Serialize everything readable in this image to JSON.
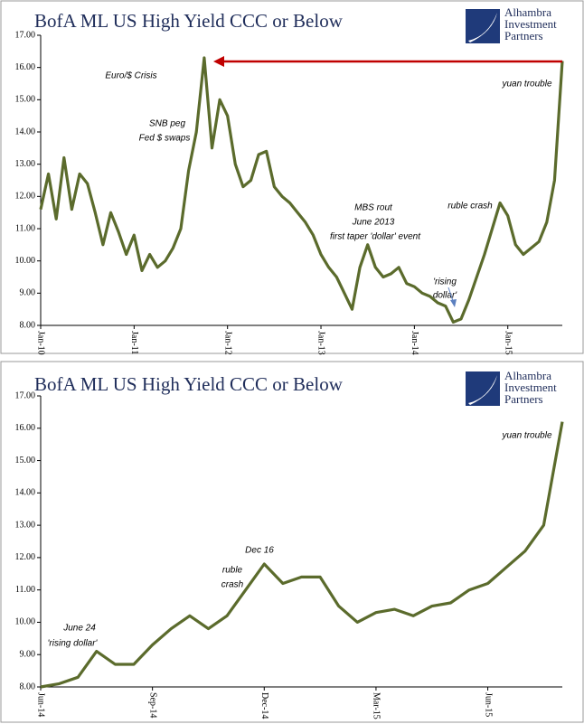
{
  "chart_data": [
    {
      "type": "line",
      "title": "BofA ML US High Yield CCC or Below",
      "logo": [
        "Alhambra",
        "Investment",
        "Partners"
      ],
      "categories": [
        "Jan-10",
        null,
        null,
        null,
        null,
        null,
        null,
        null,
        null,
        null,
        null,
        null,
        "Jan-11",
        null,
        null,
        null,
        null,
        null,
        null,
        null,
        null,
        null,
        null,
        null,
        "Jan-12",
        null,
        null,
        null,
        null,
        null,
        null,
        null,
        null,
        null,
        null,
        null,
        "Jan-13",
        null,
        null,
        null,
        null,
        null,
        null,
        null,
        null,
        null,
        null,
        null,
        "Jan-14",
        null,
        null,
        null,
        null,
        null,
        null,
        null,
        null,
        null,
        null,
        null,
        "Jan-15",
        null,
        null,
        null,
        null,
        null,
        null,
        null
      ],
      "values": [
        11.6,
        12.7,
        11.3,
        13.2,
        11.6,
        12.7,
        12.4,
        11.5,
        10.5,
        11.5,
        10.9,
        10.2,
        10.8,
        9.7,
        10.2,
        9.8,
        10.0,
        10.4,
        11.0,
        12.8,
        14.0,
        16.3,
        13.5,
        15.0,
        14.5,
        13.0,
        12.3,
        12.5,
        13.3,
        13.4,
        12.3,
        12.0,
        11.8,
        11.5,
        11.2,
        10.8,
        10.2,
        9.8,
        9.5,
        9.0,
        8.5,
        9.8,
        10.5,
        9.8,
        9.5,
        9.6,
        9.8,
        9.3,
        9.2,
        9.0,
        8.9,
        8.7,
        8.6,
        8.1,
        8.2,
        8.8,
        9.5,
        10.2,
        11.0,
        11.8,
        11.4,
        10.5,
        10.2,
        10.4,
        10.6,
        11.2,
        12.5,
        16.2
      ],
      "color": "#5b6b2c",
      "ylim": [
        8,
        17
      ],
      "yticks": [
        {
          "value": 8,
          "label": "8.00"
        },
        {
          "value": 9,
          "label": "9.00"
        },
        {
          "value": 10,
          "label": "10.00"
        },
        {
          "value": 11,
          "label": "11.00"
        },
        {
          "value": 12,
          "label": "12.00"
        },
        {
          "value": 13,
          "label": "13.00"
        },
        {
          "value": 14,
          "label": "14.00"
        },
        {
          "value": 15,
          "label": "15.00"
        },
        {
          "value": 16,
          "label": "16.00"
        },
        {
          "value": 17,
          "label": "17.00"
        }
      ],
      "annotations": [
        "Euro/$ Crisis",
        "SNB peg",
        "Fed $ swaps",
        "MBS rout",
        "June 2013",
        "first taper 'dollar' event",
        "ruble crash",
        "'rising",
        "dollar'",
        "yuan trouble"
      ]
    },
    {
      "type": "line",
      "title": "BofA ML US High Yield CCC or Below",
      "logo": [
        "Alhambra",
        "Investment",
        "Partners"
      ],
      "categories": [
        "Jun-14",
        null,
        null,
        null,
        null,
        null,
        "Sep-14",
        null,
        null,
        null,
        null,
        null,
        "Dec-14",
        null,
        null,
        null,
        null,
        null,
        "Mar-15",
        null,
        null,
        null,
        null,
        null,
        "Jun-15",
        null,
        null,
        null,
        null
      ],
      "values": [
        8.0,
        8.1,
        8.3,
        9.1,
        8.7,
        8.7,
        9.3,
        9.8,
        10.2,
        9.8,
        10.2,
        11.0,
        11.8,
        11.2,
        11.4,
        11.4,
        10.5,
        10.0,
        10.3,
        10.4,
        10.2,
        10.5,
        10.6,
        11.0,
        11.2,
        11.7,
        12.2,
        13.0,
        16.2
      ],
      "color": "#5b6b2c",
      "ylim": [
        8,
        17
      ],
      "yticks": [
        {
          "value": 8,
          "label": "8.00"
        },
        {
          "value": 9,
          "label": "9.00"
        },
        {
          "value": 10,
          "label": "10.00"
        },
        {
          "value": 11,
          "label": "11.00"
        },
        {
          "value": 12,
          "label": "12.00"
        },
        {
          "value": 13,
          "label": "13.00"
        },
        {
          "value": 14,
          "label": "14.00"
        },
        {
          "value": 15,
          "label": "15.00"
        },
        {
          "value": 16,
          "label": "16.00"
        },
        {
          "value": 17,
          "label": "17.00"
        }
      ],
      "annotations": [
        "yuan trouble",
        "Dec 16",
        "ruble",
        "crash",
        "June 24",
        "'rising dollar'"
      ]
    }
  ]
}
